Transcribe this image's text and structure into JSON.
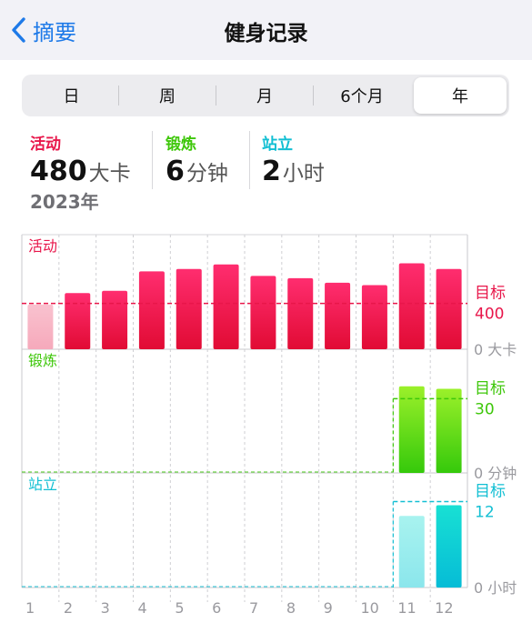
{
  "nav": {
    "back_label": "摘要",
    "title": "健身记录"
  },
  "segments": [
    {
      "label": "日",
      "active": false
    },
    {
      "label": "周",
      "active": false
    },
    {
      "label": "月",
      "active": false
    },
    {
      "label": "6个月",
      "active": false
    },
    {
      "label": "年",
      "active": true
    }
  ],
  "summary": {
    "move": {
      "label": "活动",
      "value": "480",
      "unit": "大卡"
    },
    "exercise": {
      "label": "锻炼",
      "value": "6",
      "unit": "分钟"
    },
    "stand": {
      "label": "站立",
      "value": "2",
      "unit": "小时"
    },
    "year": "2023年"
  },
  "colors": {
    "move": "#e8164a",
    "move_pale": "#f6b7c6",
    "exercise": "#3ec70a",
    "stand": "#12bfd3"
  },
  "chart_data": [
    {
      "type": "bar",
      "name": "活动",
      "categories": [
        "1",
        "2",
        "3",
        "4",
        "5",
        "6",
        "7",
        "8",
        "9",
        "10",
        "11",
        "12"
      ],
      "values": [
        390,
        490,
        510,
        680,
        700,
        740,
        640,
        620,
        580,
        560,
        750,
        700
      ],
      "ylim": [
        0,
        1000
      ],
      "goal": 400,
      "goal_label": "目标",
      "goal_value_label": "400",
      "zero_label": "0 大卡"
    },
    {
      "type": "bar",
      "name": "锻炼",
      "categories": [
        "1",
        "2",
        "3",
        "4",
        "5",
        "6",
        "7",
        "8",
        "9",
        "10",
        "11",
        "12"
      ],
      "values": [
        0,
        0,
        0,
        0,
        0,
        0,
        0,
        0,
        0,
        0,
        35,
        34
      ],
      "ylim": [
        0,
        50
      ],
      "goal": 30,
      "goal_label": "目标",
      "goal_value_label": "30",
      "zero_label": "0 分钟"
    },
    {
      "type": "bar",
      "name": "站立",
      "categories": [
        "1",
        "2",
        "3",
        "4",
        "5",
        "6",
        "7",
        "8",
        "9",
        "10",
        "11",
        "12"
      ],
      "values": [
        0,
        0,
        0,
        0,
        0,
        0,
        0,
        0,
        0,
        0,
        10,
        11.5
      ],
      "ylim": [
        0,
        16
      ],
      "goal": 12,
      "goal_label": "目标",
      "goal_value_label": "12",
      "zero_label": "0 小时"
    }
  ]
}
